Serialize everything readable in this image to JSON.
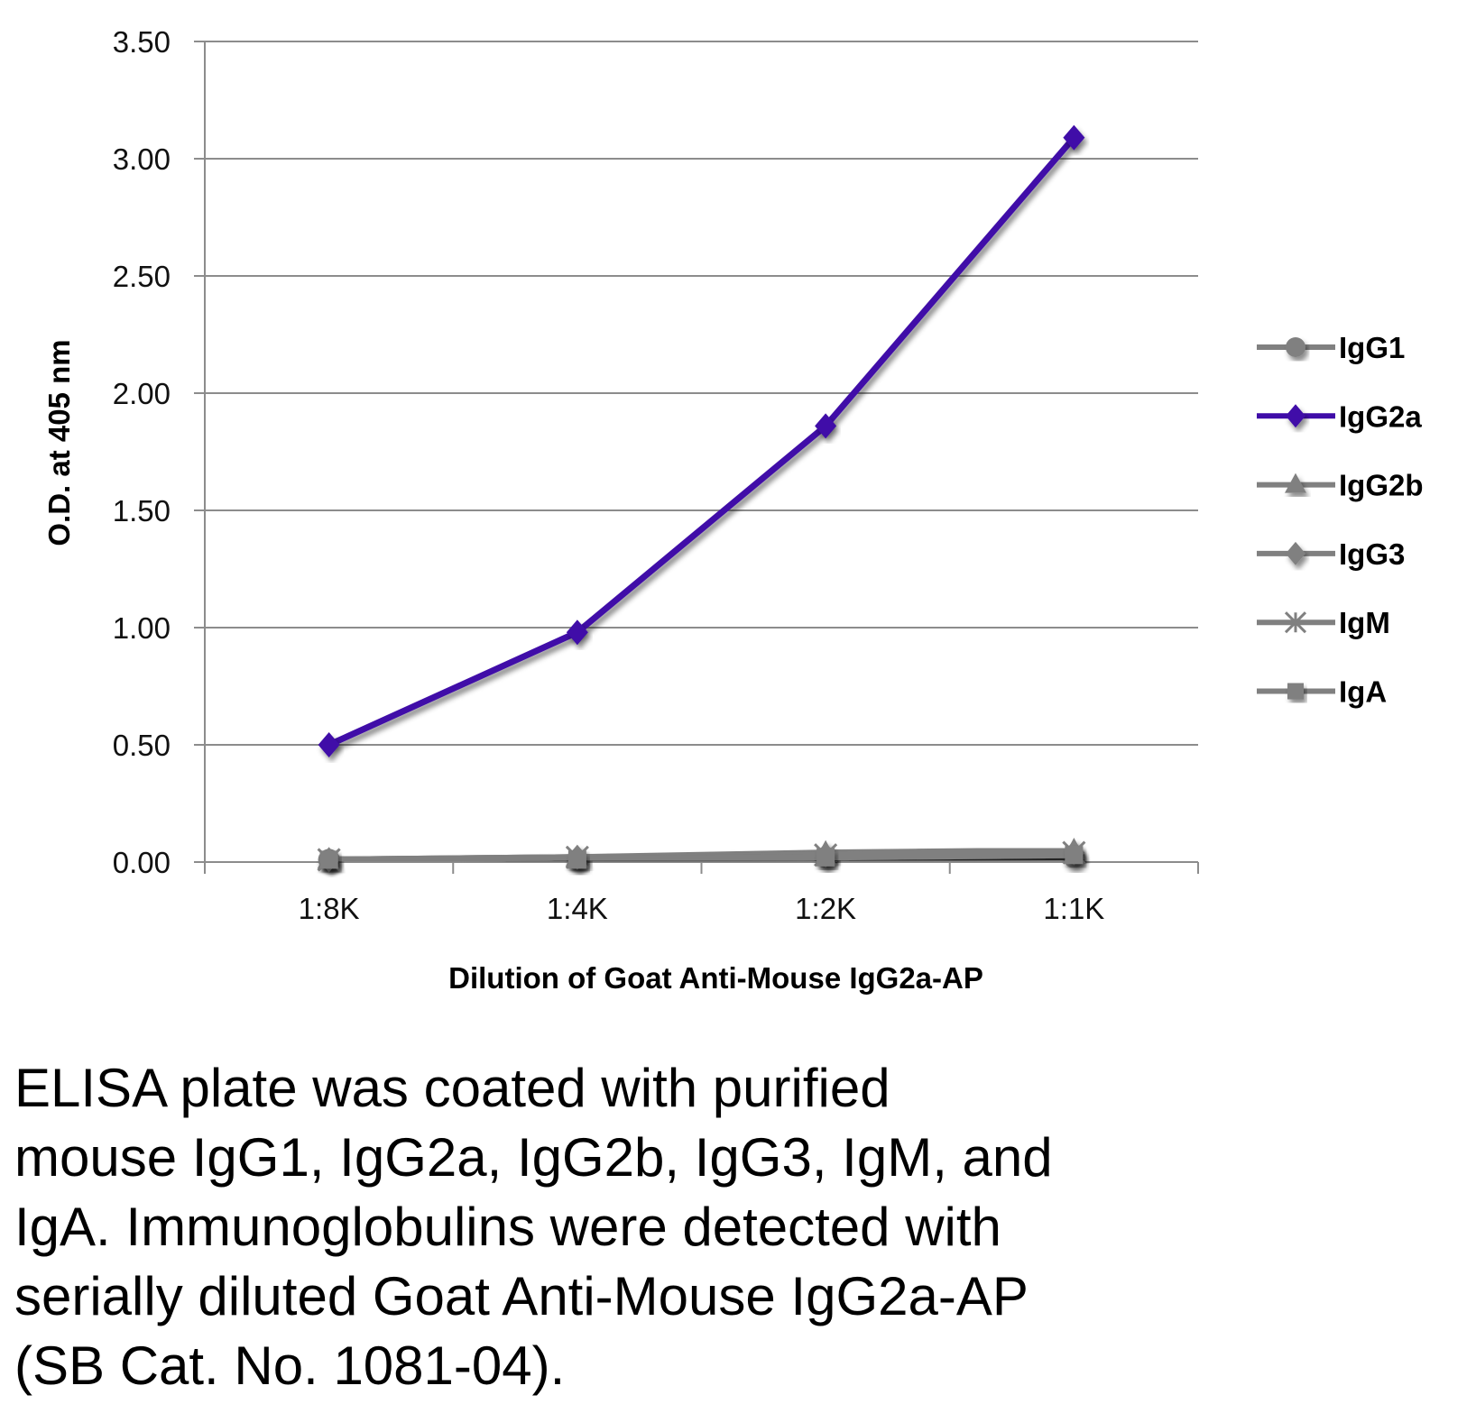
{
  "chart_data": {
    "type": "line",
    "categories": [
      "1:8K",
      "1:4K",
      "1:2K",
      "1:1K"
    ],
    "xlabel": "Dilution of Goat Anti-Mouse IgG2a-AP",
    "ylabel": "O.D. at 405 nm",
    "ylim": [
      0,
      3.5
    ],
    "yticks": [
      "0.00",
      "0.50",
      "1.00",
      "1.50",
      "2.00",
      "2.50",
      "3.00",
      "3.50"
    ],
    "grid": true,
    "legend_position": "right",
    "series": [
      {
        "name": "IgG1",
        "marker": "circle",
        "color": "#808080",
        "values": [
          0.01,
          0.01,
          0.02,
          0.02
        ]
      },
      {
        "name": "IgG2a",
        "marker": "diamond",
        "color": "#3f0ca8",
        "values": [
          0.5,
          0.98,
          1.86,
          3.09
        ]
      },
      {
        "name": "IgG2b",
        "marker": "triangle",
        "color": "#808080",
        "values": [
          0.01,
          0.02,
          0.04,
          0.05
        ]
      },
      {
        "name": "IgG3",
        "marker": "diamond",
        "color": "#808080",
        "values": [
          0.01,
          0.02,
          0.03,
          0.04
        ]
      },
      {
        "name": "IgM",
        "marker": "star",
        "color": "#808080",
        "values": [
          0.01,
          0.02,
          0.03,
          0.04
        ]
      },
      {
        "name": "IgA",
        "marker": "square",
        "color": "#808080",
        "values": [
          0.01,
          0.01,
          0.02,
          0.03
        ]
      }
    ]
  },
  "caption": [
    "ELISA plate was coated with purified",
    "mouse IgG1, IgG2a, IgG2b, IgG3, IgM, and",
    "IgA.  Immunoglobulins were detected with",
    "serially diluted Goat Anti-Mouse IgG2a-AP",
    "(SB Cat. No. 1081-04)."
  ]
}
